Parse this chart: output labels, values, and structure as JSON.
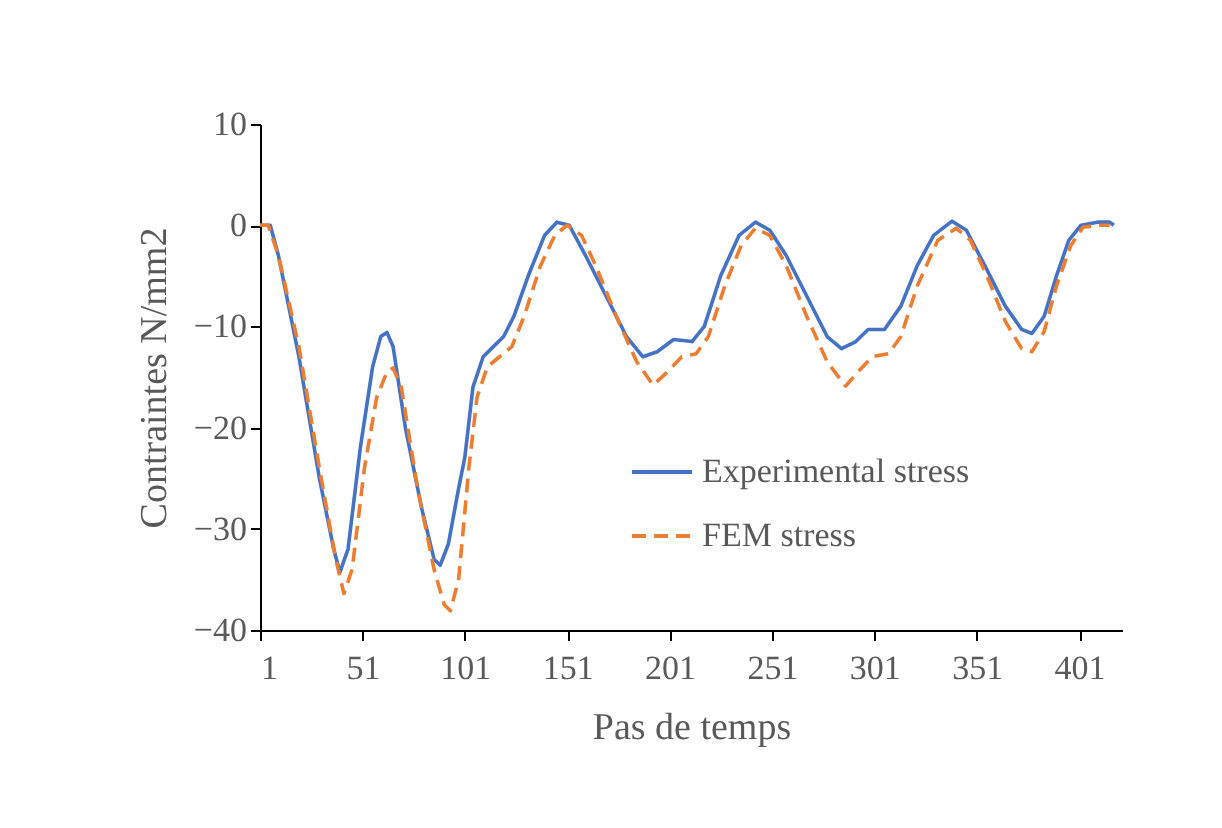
{
  "chart_data": {
    "type": "line",
    "xlabel": "Pas de temps",
    "ylabel": "Contraintes N/mm2",
    "xlim": [
      1,
      422
    ],
    "xticks": [
      1,
      51,
      101,
      151,
      201,
      251,
      301,
      351,
      401
    ],
    "ylim": [
      -40,
      10
    ],
    "yticks": [
      -40,
      -30,
      -20,
      -10,
      0,
      10
    ],
    "grid": false,
    "legend": "bottom right",
    "marker": "none",
    "series": [
      {
        "name": "Experimental stress",
        "color": "#4472c4",
        "line_style": "solid",
        "x": [
          1,
          6,
          10,
          20,
          30,
          37,
          40,
          44,
          50,
          56,
          60,
          63,
          66,
          72,
          80,
          86,
          89,
          93,
          98,
          101,
          105,
          110,
          115,
          120,
          125,
          132,
          140,
          146,
          152,
          160,
          170,
          180,
          188,
          195,
          203,
          212,
          218,
          226,
          235,
          243,
          250,
          258,
          268,
          278,
          285,
          292,
          298,
          306,
          314,
          322,
          330,
          339,
          346,
          355,
          365,
          373,
          378,
          384,
          390,
          396,
          402,
          410,
          416,
          418
        ],
        "values": [
          0,
          0,
          -3,
          -13,
          -25,
          -32,
          -34.3,
          -32,
          -22,
          -14,
          -11,
          -10.6,
          -12,
          -20,
          -28,
          -33,
          -33.6,
          -31.5,
          -26,
          -23,
          -16,
          -13,
          -12,
          -11,
          -9,
          -5,
          -1,
          0.3,
          0,
          -3,
          -7,
          -11,
          -13,
          -12.5,
          -11.3,
          -11.5,
          -10,
          -5,
          -1,
          0.3,
          -0.5,
          -3,
          -7,
          -11,
          -12.2,
          -11.5,
          -10.3,
          -10.3,
          -8,
          -4,
          -1,
          0.4,
          -0.5,
          -4,
          -8,
          -10.3,
          -10.7,
          -9,
          -5,
          -1.5,
          0,
          0.3,
          0.3,
          0
        ]
      },
      {
        "name": "FEM stress",
        "color": "#ed7d31",
        "line_style": "dashed",
        "x": [
          1,
          5,
          10,
          20,
          30,
          38,
          42,
          46,
          52,
          58,
          63,
          66,
          70,
          78,
          86,
          91,
          94,
          98,
          103,
          107,
          112,
          118,
          124,
          130,
          138,
          145,
          151,
          158,
          165,
          175,
          185,
          193,
          200,
          207,
          214,
          220,
          228,
          236,
          243,
          250,
          258,
          268,
          278,
          287,
          293,
          300,
          308,
          314,
          322,
          332,
          341,
          348,
          356,
          365,
          373,
          378,
          384,
          390,
          397,
          403,
          410,
          416
        ],
        "values": [
          0,
          0,
          -3,
          -12,
          -24,
          -33,
          -36.4,
          -34,
          -24,
          -17,
          -14.5,
          -14.1,
          -16,
          -26,
          -34,
          -37.5,
          -38.1,
          -35,
          -24,
          -17,
          -14,
          -13,
          -12,
          -9,
          -4,
          -1,
          0,
          -1,
          -4,
          -9,
          -13.5,
          -15.8,
          -14.5,
          -13,
          -12.7,
          -11,
          -6,
          -2,
          -0.3,
          -1,
          -4,
          -9,
          -13.5,
          -15.9,
          -14.5,
          -13,
          -12.7,
          -11,
          -6,
          -1.5,
          -0.3,
          -1.5,
          -5,
          -9.5,
          -12.2,
          -12.5,
          -10.5,
          -6,
          -2,
          -0.2,
          0,
          0
        ]
      }
    ]
  }
}
